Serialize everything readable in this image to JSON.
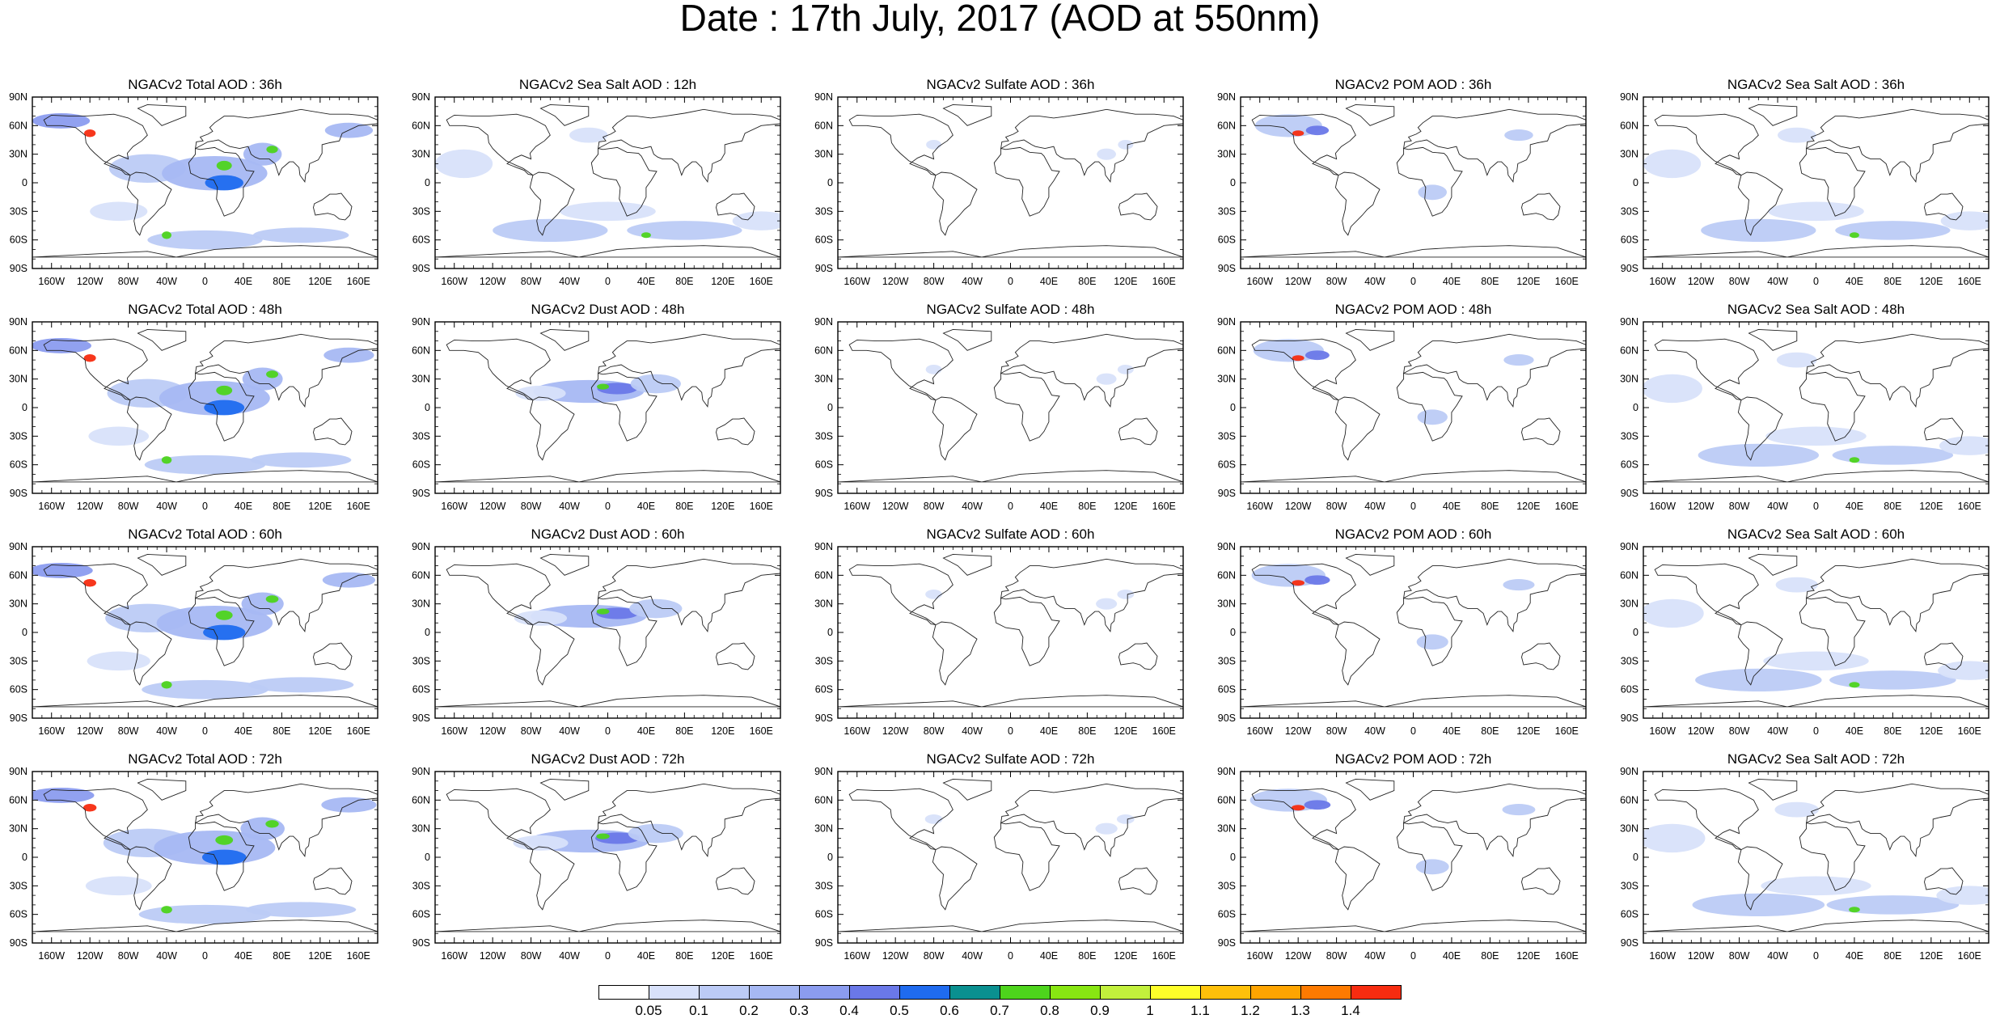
{
  "title": "Date : 17th July, 2017 (AOD at 550nm)",
  "panels": [
    [
      "NGACv2 Total AOD : 36h",
      "NGACv2 Sea Salt  AOD : 12h",
      "NGACv2 Sulfate AOD : 36h",
      "NGACv2 POM AOD : 36h",
      "NGACv2 Sea Salt AOD : 36h"
    ],
    [
      "NGACv2 Total AOD : 48h",
      "NGACv2 Dust AOD : 48h",
      "NGACv2 Sulfate AOD : 48h",
      "NGACv2 POM AOD : 48h",
      "NGACv2 Sea Salt AOD : 48h"
    ],
    [
      "NGACv2 Total AOD : 60h",
      "NGACv2 Dust AOD : 60h",
      "NGACv2 Sulfate AOD : 60h",
      "NGACv2 POM AOD : 60h",
      "NGACv2 Sea Salt AOD : 60h"
    ],
    [
      "NGACv2 Total AOD : 72h",
      "NGACv2 Dust AOD : 72h",
      "NGACv2 Sulfate AOD : 72h",
      "NGACv2 POM AOD : 72h",
      "NGACv2 Sea Salt  AOD : 72h"
    ]
  ],
  "lat_ticks": [
    "90N",
    "60N",
    "30N",
    "0",
    "30S",
    "60S",
    "90S"
  ],
  "lon_ticks": [
    "160W",
    "120W",
    "80W",
    "40W",
    "0",
    "40E",
    "80E",
    "120E",
    "160E"
  ],
  "colorbar": {
    "levels": [
      "0.05",
      "0.1",
      "0.2",
      "0.3",
      "0.4",
      "0.5",
      "0.6",
      "0.7",
      "0.8",
      "0.9",
      "1",
      "1.1",
      "1.2",
      "1.3",
      "1.4"
    ],
    "colors": [
      "#ffffff",
      "#d8e1fa",
      "#bccbf6",
      "#a6b8f3",
      "#8b9cef",
      "#6a78e8",
      "#1f6bef",
      "#0a9090",
      "#4dd41c",
      "#88e612",
      "#c2f03c",
      "#fefe2a",
      "#fec00a",
      "#fea400",
      "#fd7a00",
      "#f72c10"
    ]
  },
  "chart_data": {
    "type": "map-panel-grid",
    "title": "Date : 17th July, 2017 (AOD at 550nm)",
    "rows": 4,
    "columns": 5,
    "variable": "AOD at 550nm",
    "lat_range": [
      "90S",
      "90N"
    ],
    "lon_ticks": [
      "160W",
      "120W",
      "80W",
      "40W",
      "0",
      "40E",
      "80E",
      "120E",
      "160E"
    ],
    "colorbar_levels": [
      0.05,
      0.1,
      0.2,
      0.3,
      0.4,
      0.5,
      0.6,
      0.7,
      0.8,
      0.9,
      1,
      1.1,
      1.2,
      1.3,
      1.4
    ]
  }
}
